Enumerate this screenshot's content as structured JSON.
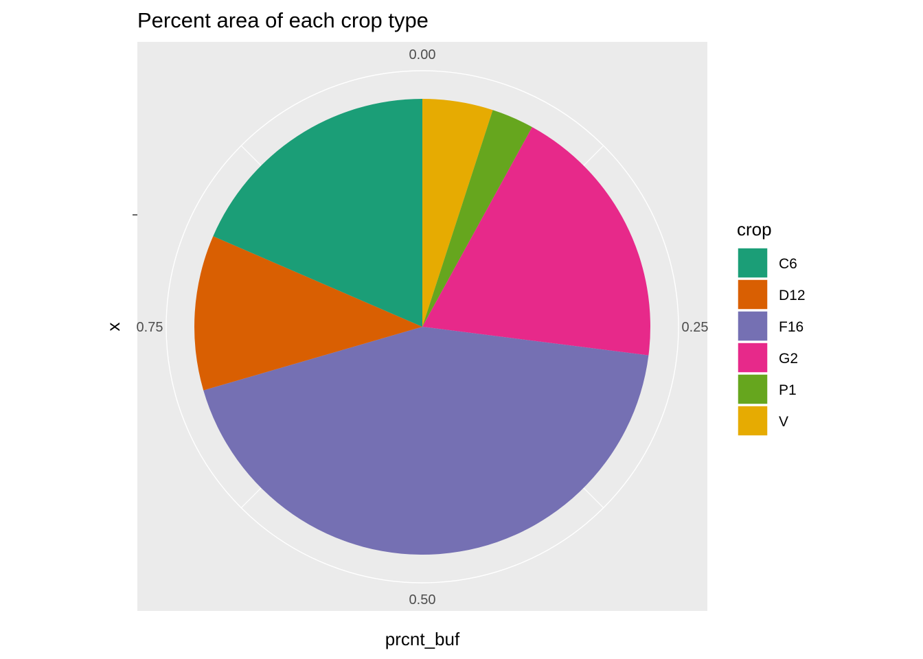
{
  "chart_data": {
    "type": "pie",
    "title": "Percent area of each crop type",
    "xlabel": "prcnt_buf",
    "ylabel": "x",
    "theta_axis_ticks": [
      "0.00",
      "0.25",
      "0.50",
      "0.75"
    ],
    "theta_axis_tick_values": [
      0.0,
      0.25,
      0.5,
      0.75
    ],
    "legend": {
      "title": "crop",
      "position": "right"
    },
    "grid": true,
    "slices": [
      {
        "label": "V",
        "value": 0.05,
        "color": "#E6AB02"
      },
      {
        "label": "P1",
        "value": 0.03,
        "color": "#66A61E"
      },
      {
        "label": "G2",
        "value": 0.19,
        "color": "#E7298A"
      },
      {
        "label": "F16",
        "value": 0.435,
        "color": "#7570B3"
      },
      {
        "label": "D12",
        "value": 0.11,
        "color": "#D95F02"
      },
      {
        "label": "C6",
        "value": 0.185,
        "color": "#1B9E77"
      }
    ],
    "legend_order": [
      "C6",
      "D12",
      "F16",
      "G2",
      "P1",
      "V"
    ]
  },
  "colors": {
    "panel_background": "#EBEBEB",
    "grid_line": "#FFFFFF"
  }
}
